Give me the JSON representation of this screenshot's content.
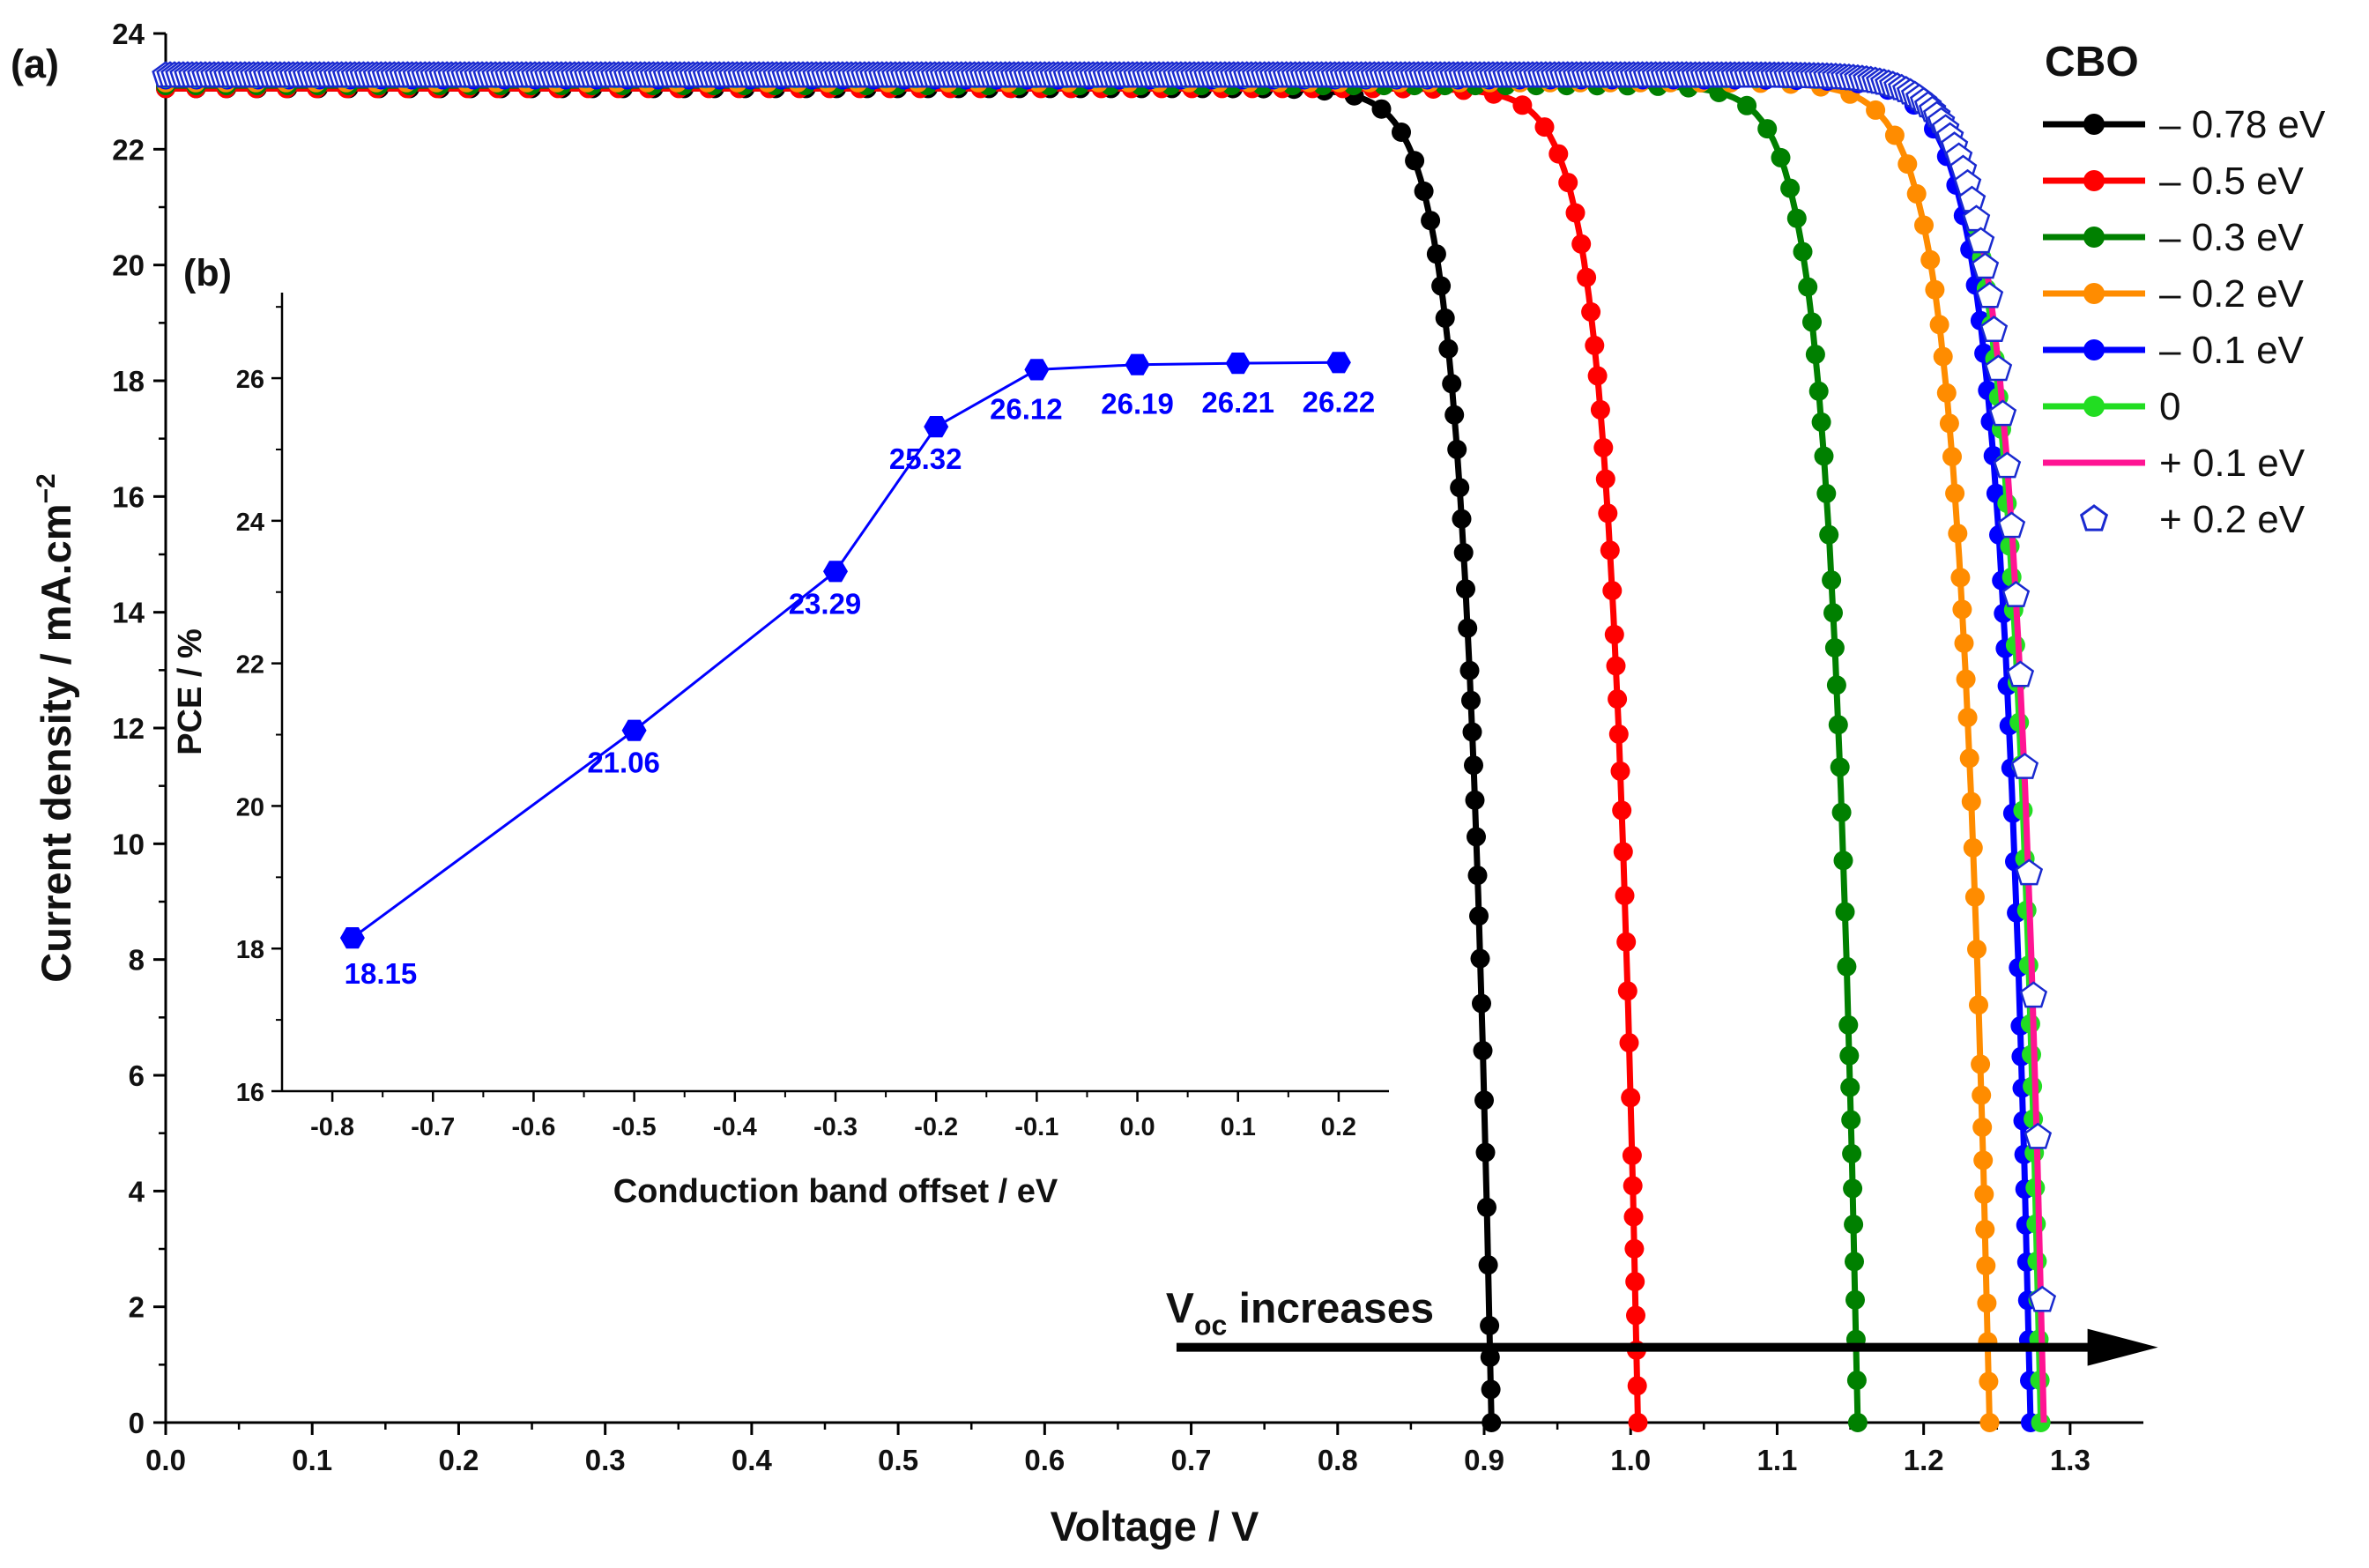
{
  "chart_data": [
    {
      "id": "main",
      "type": "line",
      "panel_label": "(a)",
      "title": "",
      "xlabel": "Voltage / V",
      "ylabel": "Current density / mA.cm",
      "ylabel_sup": "−2",
      "xlim": [
        0.0,
        1.35
      ],
      "ylim": [
        0,
        24
      ],
      "xticks": [
        "0.0",
        "0.1",
        "0.2",
        "0.3",
        "0.4",
        "0.5",
        "0.6",
        "0.7",
        "0.8",
        "0.9",
        "1.0",
        "1.1",
        "1.2",
        "1.3"
      ],
      "yticks": [
        "0",
        "2",
        "4",
        "6",
        "8",
        "10",
        "12",
        "14",
        "16",
        "18",
        "20",
        "22",
        "24"
      ],
      "legend_title": "CBO",
      "legend_position": "top-right",
      "series": [
        {
          "name": "– 0.78 eV",
          "color": "#000000",
          "jsc": 23.05,
          "voc": 0.905,
          "knee": 0.018
        },
        {
          "name": "– 0.5 eV",
          "color": "#ff0000",
          "jsc": 23.05,
          "voc": 1.005,
          "knee": 0.018
        },
        {
          "name": "– 0.3 eV",
          "color": "#008000",
          "jsc": 23.1,
          "voc": 1.155,
          "knee": 0.018
        },
        {
          "name": "– 0.2 eV",
          "color": "#ff8c00",
          "jsc": 23.15,
          "voc": 1.245,
          "knee": 0.02
        },
        {
          "name": "– 0.1 eV",
          "color": "#0000ff",
          "jsc": 23.2,
          "voc": 1.273,
          "knee": 0.02
        },
        {
          "name": "0",
          "color": "#22dd22",
          "jsc": 23.22,
          "voc": 1.28,
          "knee": 0.02
        },
        {
          "name": "+ 0.1 eV",
          "color": "#ff1493",
          "jsc": 23.24,
          "voc": 1.282,
          "knee": 0.02
        },
        {
          "name": "+ 0.2 eV",
          "color": "#1a2ad0",
          "jsc": 23.27,
          "voc": 1.283,
          "knee": 0.021
        }
      ],
      "annotation": {
        "text": "V",
        "sub": "oc",
        "rest": " increases",
        "arrow_from_v": 0.69,
        "arrow_to_v": 1.36,
        "arrow_at_j": 1.3
      }
    },
    {
      "id": "inset",
      "type": "line",
      "panel_label": "(b)",
      "title": "",
      "xlabel": "Conduction band offset / eV",
      "ylabel": "PCE / %",
      "xlim": [
        -0.85,
        0.25
      ],
      "ylim": [
        16,
        27.2
      ],
      "xticks": [
        "-0.8",
        "-0.7",
        "-0.6",
        "-0.5",
        "-0.4",
        "-0.3",
        "-0.2",
        "-0.1",
        "0.0",
        "0.1",
        "0.2"
      ],
      "yticks": [
        "16",
        "18",
        "20",
        "22",
        "24",
        "26"
      ],
      "color": "#0000ff",
      "x": [
        -0.78,
        -0.5,
        -0.3,
        -0.2,
        -0.1,
        0.0,
        0.1,
        0.2
      ],
      "y": [
        18.15,
        21.06,
        23.29,
        25.32,
        26.12,
        26.19,
        26.21,
        26.22
      ],
      "labels": [
        "18.15",
        "21.06",
        "23.29",
        "25.32",
        "26.12",
        "26.19",
        "26.21",
        "26.22"
      ]
    }
  ]
}
